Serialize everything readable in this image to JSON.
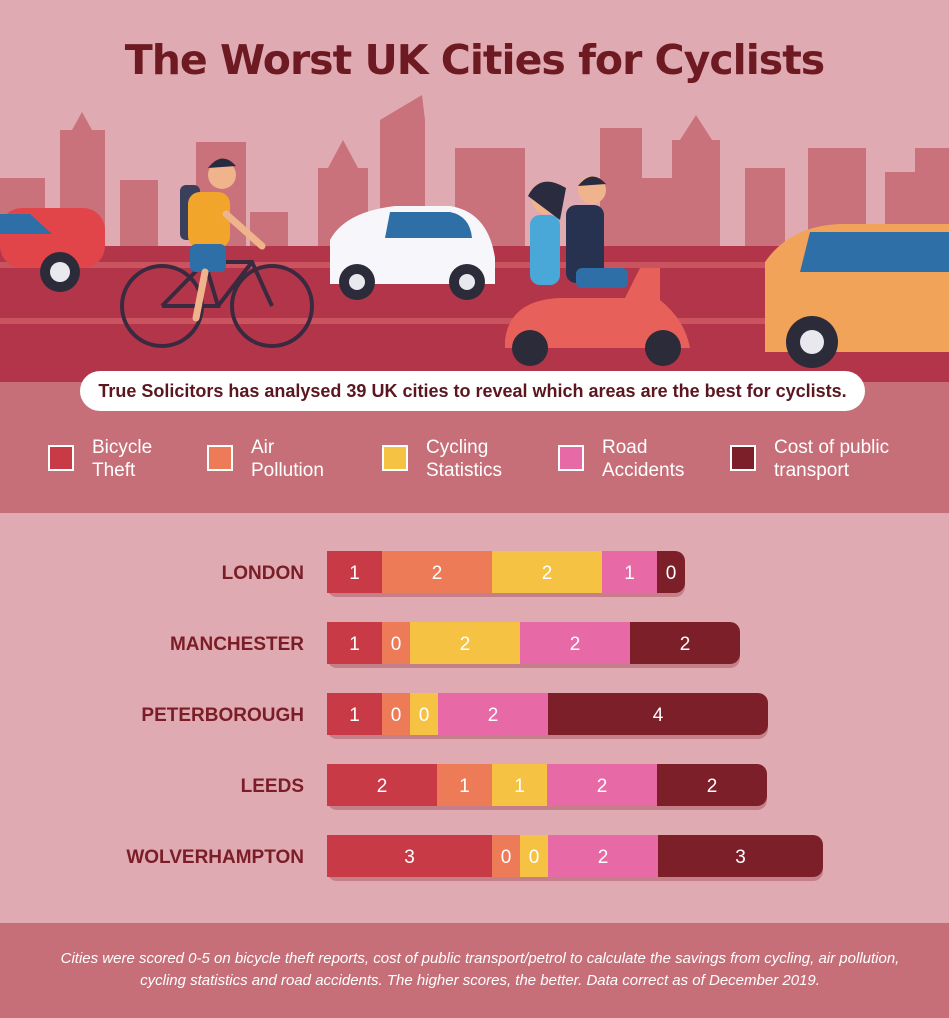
{
  "title": "The Worst UK Cities for Cyclists",
  "intro": "True Solicitors has analysed 39 UK cities to reveal which areas are the best for cyclists.",
  "footnote": "Cities were scored 0-5 on bicycle theft reports, cost of public transport/petrol to calculate the savings from cycling, air pollution, cycling statistics and road accidents. The higher scores, the better. Data correct as of December 2019.",
  "legend": [
    {
      "label": "Bicycle Theft",
      "color": "#c83a46"
    },
    {
      "label": "Air Pollution",
      "color": "#ee7b58"
    },
    {
      "label": "Cycling Statistics",
      "color": "#f5c244"
    },
    {
      "label": "Road Accidents",
      "color": "#e76aa7"
    },
    {
      "label": "Cost of public transport",
      "color": "#7d1f28"
    }
  ],
  "colors": {
    "title": "#6e1a22",
    "city_label": "#7a1d26",
    "background": "#e0aab2",
    "band": "#c66f79",
    "road": "#b3354a",
    "skyline": "#c9727b"
  },
  "chart_data": {
    "type": "bar",
    "orientation": "horizontal",
    "stacked": true,
    "categories": [
      "LONDON",
      "MANCHESTER",
      "PETERBOROUGH",
      "LEEDS",
      "WOLVERHAMPTON"
    ],
    "series": [
      {
        "name": "Bicycle Theft",
        "values": [
          1,
          1,
          1,
          2,
          3
        ]
      },
      {
        "name": "Air Pollution",
        "values": [
          2,
          0,
          0,
          1,
          0
        ]
      },
      {
        "name": "Cycling Statistics",
        "values": [
          2,
          2,
          0,
          1,
          0
        ]
      },
      {
        "name": "Road Accidents",
        "values": [
          1,
          2,
          2,
          2,
          2
        ]
      },
      {
        "name": "Cost of public transport",
        "values": [
          0,
          2,
          4,
          2,
          3
        ]
      }
    ],
    "score_range": [
      0,
      5
    ],
    "data_labels": true,
    "grid": false
  }
}
